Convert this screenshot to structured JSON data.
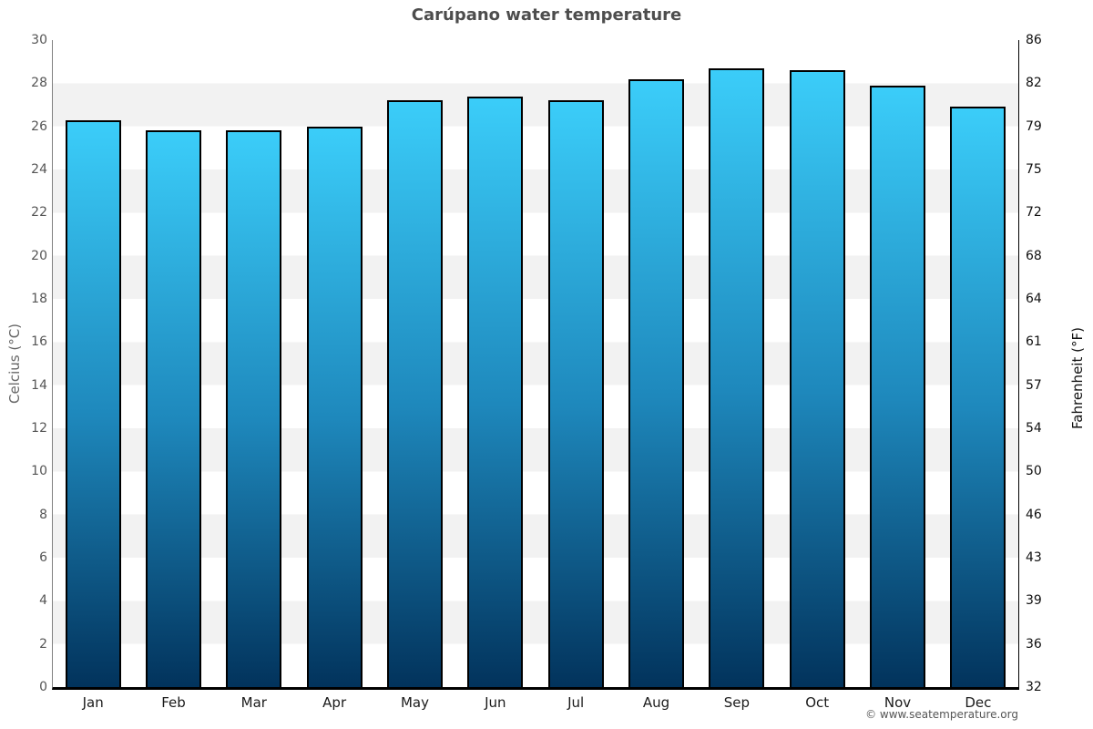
{
  "page": {
    "title": "Carúpano water temperature",
    "footer": "© www.seatemperature.org"
  },
  "chart_data": {
    "type": "bar",
    "title": "Carúpano water temperature",
    "categories": [
      "Jan",
      "Feb",
      "Mar",
      "Apr",
      "May",
      "Jun",
      "Jul",
      "Aug",
      "Sep",
      "Oct",
      "Nov",
      "Dec"
    ],
    "series": [
      {
        "name": "Water temperature (°C)",
        "values": [
          26.3,
          25.8,
          25.8,
          26.0,
          27.2,
          27.4,
          27.2,
          28.2,
          28.7,
          28.6,
          27.9,
          26.9
        ]
      }
    ],
    "xlabel": "",
    "ylabel_left": "Celcius (°C)",
    "ylabel_right": "Fahrenheit (°F)",
    "ylim": [
      0,
      30
    ],
    "yticks_celsius": [
      0,
      2,
      4,
      6,
      8,
      10,
      12,
      14,
      16,
      18,
      20,
      22,
      24,
      26,
      28,
      30
    ],
    "yticks_fahrenheit": [
      32,
      36,
      39,
      43,
      46,
      50,
      54,
      57,
      61,
      64,
      68,
      72,
      75,
      79,
      82,
      86
    ],
    "legend_position": "none",
    "grid": "alternating horizontal bands every 2°C",
    "footer": "© www.seatemperature.org",
    "colors": {
      "bar_gradient_top": "#3bcdf9",
      "bar_gradient_mid": "#1e88bc",
      "bar_gradient_bottom": "#02335c",
      "bar_border": "#000000",
      "band_gray": "#f2f2f2",
      "band_white": "#ffffff",
      "title_text": "#4d4d4d",
      "left_axis_text": "#555555",
      "right_axis_text": "#111111"
    }
  }
}
